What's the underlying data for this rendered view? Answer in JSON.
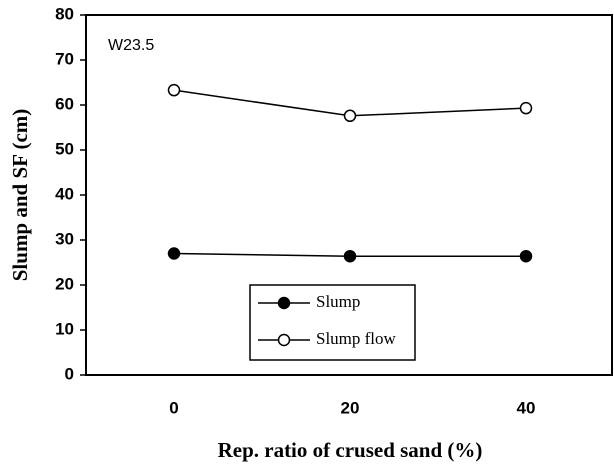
{
  "chart_data": {
    "type": "line",
    "annotation": "W23.5",
    "x_label": "Rep. ratio of crused sand (%)",
    "y_label": "Slump and SF (cm)",
    "x": [
      0,
      20,
      40
    ],
    "xlim": [
      -10,
      50
    ],
    "xticks": [
      0,
      20,
      40
    ],
    "ylim": [
      0,
      80
    ],
    "yticks": [
      0,
      10,
      20,
      30,
      40,
      50,
      60,
      70,
      80
    ],
    "legend": "lower center",
    "series": [
      {
        "name": "Slump",
        "color": "#000000",
        "marker": "filled",
        "values": [
          27,
          26.4,
          26.4
        ]
      },
      {
        "name": "Slump flow",
        "color": "#000000",
        "marker": "open",
        "values": [
          63.3,
          57.6,
          59.3
        ]
      }
    ]
  }
}
